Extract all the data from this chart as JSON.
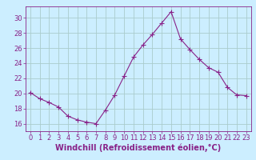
{
  "x": [
    0,
    1,
    2,
    3,
    4,
    5,
    6,
    7,
    8,
    9,
    10,
    11,
    12,
    13,
    14,
    15,
    16,
    17,
    18,
    19,
    20,
    21,
    22,
    23
  ],
  "y": [
    20.1,
    19.3,
    18.8,
    18.2,
    17.0,
    16.5,
    16.2,
    16.0,
    17.8,
    19.8,
    22.3,
    24.8,
    26.4,
    27.8,
    29.3,
    30.8,
    27.2,
    25.8,
    24.5,
    23.4,
    22.8,
    20.8,
    19.8,
    19.7
  ],
  "line_color": "#882288",
  "marker": "+",
  "marker_size": 4,
  "bg_color": "#cceeff",
  "grid_color": "#aacccc",
  "axis_color": "#882288",
  "xlabel": "Windchill (Refroidissement éolien,°C)",
  "xlabel_fontsize": 7,
  "tick_fontsize": 6,
  "ylim": [
    15.0,
    31.5
  ],
  "xlim": [
    -0.5,
    23.5
  ],
  "yticks": [
    16,
    18,
    20,
    22,
    24,
    26,
    28,
    30
  ],
  "xticks": [
    0,
    1,
    2,
    3,
    4,
    5,
    6,
    7,
    8,
    9,
    10,
    11,
    12,
    13,
    14,
    15,
    16,
    17,
    18,
    19,
    20,
    21,
    22,
    23
  ]
}
